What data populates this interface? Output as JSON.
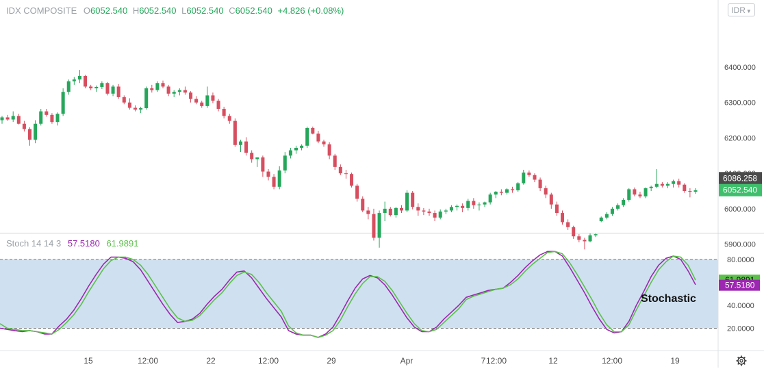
{
  "header": {
    "symbol": "IDX COMPOSITE",
    "o_label": "O",
    "o_value": "6052.540",
    "h_label": "H",
    "h_value": "6052.540",
    "l_label": "L",
    "l_value": "6052.540",
    "c_label": "C",
    "c_value": "6052.540",
    "change": "+4.826 (+0.08%)"
  },
  "currency_button": {
    "label": "IDR",
    "icon": "chevron-down-icon"
  },
  "stoch_header": {
    "name": "Stoch 14 14 3",
    "k_value": "57.5180",
    "d_value": "61.9891"
  },
  "annotation": "Stochastic",
  "settings_icon": "gear-icon",
  "colors": {
    "up": "#26a65b",
    "down": "#d64e5f",
    "k_line": "#9c27b0",
    "d_line": "#5cc04a",
    "band_fill": "#cfe0f0",
    "last_price_badge": "#3fbf6c",
    "crosshair_badge": "#4a4a4a"
  },
  "chart_data": [
    {
      "type": "candlestick",
      "price_axis": {
        "ticks": [
          "6400.000",
          "6300.000",
          "6200.000",
          "6100.000",
          "6000.000",
          "5900.000"
        ],
        "range": [
          5845,
          6455
        ]
      },
      "price_labels": {
        "crosshair": "6086.258",
        "last": "6052.540"
      },
      "time_axis": [
        "15",
        "12:00",
        "22",
        "12:00",
        "29",
        "Apr",
        "7",
        "12:00",
        "12",
        "12:00",
        "19"
      ],
      "candles": [
        [
          6250,
          6262,
          6240,
          6258
        ],
        [
          6258,
          6265,
          6248,
          6252
        ],
        [
          6252,
          6275,
          6245,
          6262
        ],
        [
          6262,
          6268,
          6238,
          6240
        ],
        [
          6240,
          6248,
          6218,
          6225
        ],
        [
          6225,
          6230,
          6178,
          6195
        ],
        [
          6195,
          6250,
          6185,
          6240
        ],
        [
          6240,
          6282,
          6235,
          6275
        ],
        [
          6275,
          6282,
          6260,
          6265
        ],
        [
          6265,
          6270,
          6240,
          6245
        ],
        [
          6245,
          6272,
          6235,
          6268
        ],
        [
          6268,
          6340,
          6262,
          6330
        ],
        [
          6330,
          6365,
          6322,
          6360
        ],
        [
          6360,
          6372,
          6350,
          6365
        ],
        [
          6365,
          6392,
          6355,
          6375
        ],
        [
          6375,
          6378,
          6340,
          6345
        ],
        [
          6345,
          6350,
          6335,
          6340
        ],
        [
          6340,
          6348,
          6330,
          6344
        ],
        [
          6344,
          6360,
          6338,
          6355
        ],
        [
          6355,
          6358,
          6320,
          6325
        ],
        [
          6325,
          6350,
          6318,
          6345
        ],
        [
          6345,
          6352,
          6310,
          6315
        ],
        [
          6315,
          6320,
          6295,
          6300
        ],
        [
          6300,
          6312,
          6280,
          6285
        ],
        [
          6285,
          6292,
          6275,
          6280
        ],
        [
          6280,
          6288,
          6270,
          6284
        ],
        [
          6284,
          6345,
          6280,
          6340
        ],
        [
          6340,
          6350,
          6328,
          6335
        ],
        [
          6335,
          6360,
          6330,
          6355
        ],
        [
          6355,
          6362,
          6340,
          6345
        ],
        [
          6345,
          6350,
          6318,
          6325
        ],
        [
          6325,
          6335,
          6315,
          6330
        ],
        [
          6330,
          6340,
          6320,
          6335
        ],
        [
          6335,
          6345,
          6322,
          6328
        ],
        [
          6328,
          6332,
          6300,
          6310
        ],
        [
          6310,
          6318,
          6295,
          6300
        ],
        [
          6300,
          6305,
          6285,
          6290
        ],
        [
          6290,
          6345,
          6285,
          6320
        ],
        [
          6320,
          6328,
          6298,
          6305
        ],
        [
          6305,
          6310,
          6275,
          6282
        ],
        [
          6282,
          6288,
          6255,
          6262
        ],
        [
          6262,
          6268,
          6240,
          6248
        ],
        [
          6248,
          6255,
          6175,
          6180
        ],
        [
          6180,
          6195,
          6160,
          6190
        ],
        [
          6190,
          6202,
          6150,
          6158
        ],
        [
          6158,
          6165,
          6130,
          6140
        ],
        [
          6140,
          6145,
          6118,
          6145
        ],
        [
          6145,
          6150,
          6090,
          6105
        ],
        [
          6105,
          6112,
          6080,
          6090
        ],
        [
          6090,
          6098,
          6055,
          6062
        ],
        [
          6062,
          6120,
          6055,
          6108
        ],
        [
          6108,
          6160,
          6100,
          6150
        ],
        [
          6150,
          6172,
          6142,
          6165
        ],
        [
          6165,
          6178,
          6155,
          6172
        ],
        [
          6172,
          6182,
          6165,
          6178
        ],
        [
          6178,
          6232,
          6172,
          6228
        ],
        [
          6228,
          6232,
          6210,
          6212
        ],
        [
          6212,
          6220,
          6185,
          6190
        ],
        [
          6190,
          6195,
          6175,
          6182
        ],
        [
          6182,
          6188,
          6140,
          6150
        ],
        [
          6150,
          6155,
          6110,
          6118
        ],
        [
          6118,
          6125,
          6095,
          6100
        ],
        [
          6100,
          6110,
          6085,
          6098
        ],
        [
          6098,
          6102,
          6060,
          6065
        ],
        [
          6065,
          6070,
          6020,
          6028
        ],
        [
          6028,
          6035,
          5990,
          5995
        ],
        [
          5995,
          6005,
          5970,
          5985
        ],
        [
          5985,
          6000,
          5910,
          5918
        ],
        [
          5918,
          5995,
          5890,
          5988
        ],
        [
          5988,
          6020,
          5965,
          6000
        ],
        [
          6000,
          6005,
          5978,
          5982
        ],
        [
          5982,
          6005,
          5975,
          6002
        ],
        [
          6002,
          6010,
          5988,
          5995
        ],
        [
          5995,
          6052,
          5990,
          6045
        ],
        [
          6045,
          6050,
          5998,
          6005
        ],
        [
          6005,
          6015,
          5980,
          5995
        ],
        [
          5995,
          6002,
          5982,
          5992
        ],
        [
          5992,
          6000,
          5980,
          5988
        ],
        [
          5988,
          5995,
          5965,
          5975
        ],
        [
          5975,
          5998,
          5970,
          5992
        ],
        [
          5992,
          6000,
          5985,
          5995
        ],
        [
          5995,
          6010,
          5990,
          6005
        ],
        [
          6005,
          6012,
          5995,
          6008
        ],
        [
          6008,
          6015,
          5990,
          6002
        ],
        [
          6002,
          6028,
          5995,
          6022
        ],
        [
          6022,
          6030,
          6000,
          6010
        ],
        [
          6010,
          6018,
          5995,
          6012
        ],
        [
          6012,
          6020,
          6005,
          6018
        ],
        [
          6018,
          6045,
          6012,
          6040
        ],
        [
          6040,
          6050,
          6030,
          6048
        ],
        [
          6048,
          6055,
          6038,
          6045
        ],
        [
          6045,
          6058,
          6040,
          6055
        ],
        [
          6055,
          6062,
          6045,
          6052
        ],
        [
          6052,
          6075,
          6048,
          6072
        ],
        [
          6072,
          6110,
          6068,
          6102
        ],
        [
          6102,
          6108,
          6090,
          6095
        ],
        [
          6095,
          6100,
          6075,
          6082
        ],
        [
          6082,
          6088,
          6050,
          6058
        ],
        [
          6058,
          6065,
          6030,
          6040
        ],
        [
          6040,
          6045,
          6000,
          6012
        ],
        [
          6012,
          6020,
          5980,
          5988
        ],
        [
          5988,
          5995,
          5955,
          5962
        ],
        [
          5962,
          5970,
          5940,
          5948
        ],
        [
          5948,
          5952,
          5915,
          5922
        ],
        [
          5922,
          5928,
          5905,
          5912
        ],
        [
          5912,
          5918,
          5885,
          5908
        ],
        [
          5908,
          5930,
          5905,
          5925
        ],
        [
          5925,
          5930,
          5920,
          5928
        ],
        [
          5965,
          5978,
          5962,
          5975
        ],
        [
          5975,
          5990,
          5970,
          5985
        ],
        [
          5985,
          6005,
          5980,
          6000
        ],
        [
          6000,
          6015,
          5995,
          6010
        ],
        [
          6010,
          6030,
          6005,
          6025
        ],
        [
          6025,
          6058,
          6020,
          6055
        ],
        [
          6055,
          6060,
          6035,
          6040
        ],
        [
          6040,
          6048,
          6030,
          6035
        ],
        [
          6035,
          6060,
          6030,
          6058
        ],
        [
          6058,
          6065,
          6050,
          6062
        ],
        [
          6062,
          6112,
          6058,
          6070
        ],
        [
          6070,
          6075,
          6060,
          6065
        ],
        [
          6065,
          6075,
          6058,
          6070
        ],
        [
          6070,
          6082,
          6060,
          6078
        ],
        [
          6078,
          6085,
          6060,
          6068
        ],
        [
          6068,
          6072,
          6045,
          6050
        ],
        [
          6050,
          6058,
          6032,
          6048
        ],
        [
          6048,
          6058,
          6042,
          6052
        ]
      ]
    },
    {
      "type": "line",
      "title": "Stoch 14 14 3",
      "y_axis": {
        "ticks": [
          "80.0000",
          "60.0000",
          "40.0000",
          "20.0000"
        ],
        "range": [
          0,
          94
        ],
        "bands": [
          20,
          80
        ]
      },
      "value_labels": [
        "61.9891",
        "57.5180"
      ],
      "series": [
        {
          "name": "%K",
          "values": [
            20,
            19,
            18,
            17,
            18,
            17,
            15,
            15,
            22,
            28,
            36,
            46,
            57,
            67,
            76,
            82,
            82,
            81,
            78,
            71,
            61,
            51,
            41,
            32,
            25,
            26,
            28,
            33,
            41,
            48,
            54,
            62,
            69,
            70,
            64,
            55,
            46,
            38,
            30,
            18,
            15,
            14,
            14,
            12,
            15,
            21,
            32,
            44,
            55,
            63,
            66,
            64,
            58,
            49,
            39,
            29,
            21,
            17,
            17,
            21,
            28,
            34,
            40,
            47,
            49,
            51,
            53,
            54,
            55,
            60,
            66,
            73,
            79,
            84,
            87,
            87,
            83,
            73,
            62,
            51,
            39,
            28,
            19,
            16,
            17,
            26,
            40,
            52,
            65,
            75,
            81,
            83,
            80,
            70,
            58
          ]
        },
        {
          "name": "%D",
          "values": [
            24,
            20,
            19,
            18,
            18,
            17,
            16,
            15,
            19,
            25,
            32,
            41,
            52,
            62,
            72,
            79,
            82,
            82,
            80,
            75,
            67,
            57,
            47,
            37,
            29,
            26,
            27,
            31,
            38,
            45,
            51,
            59,
            66,
            69,
            67,
            60,
            51,
            43,
            35,
            22,
            16,
            14,
            14,
            12,
            14,
            18,
            27,
            39,
            50,
            59,
            65,
            65,
            61,
            53,
            43,
            33,
            24,
            18,
            17,
            19,
            25,
            31,
            37,
            45,
            48,
            50,
            52,
            54,
            55,
            58,
            63,
            70,
            76,
            81,
            86,
            87,
            85,
            77,
            67,
            56,
            45,
            33,
            23,
            17,
            17,
            23,
            36,
            48,
            60,
            71,
            78,
            83,
            82,
            75,
            62
          ]
        }
      ]
    }
  ]
}
